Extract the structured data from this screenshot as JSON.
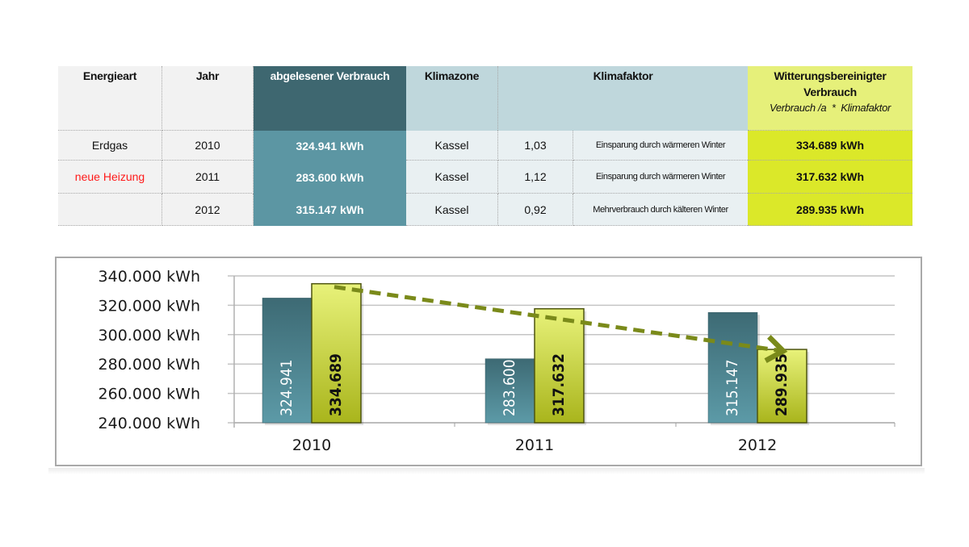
{
  "table": {
    "headers": {
      "energieart": "Energieart",
      "jahr": "Jahr",
      "verbrauch": "abgelesener Verbrauch",
      "klimazone": "Klimazone",
      "klimafaktor": "Klimafaktor",
      "witterung_line1": "Witterungsbereinigter",
      "witterung_line2": "Verbrauch",
      "witterung_formula": "Verbrauch /a  *  Klimafaktor"
    },
    "rows": [
      {
        "energieart": "Erdgas",
        "jahr": "2010",
        "verbrauch": "324.941 kWh",
        "klimazone": "Kassel",
        "faktor": "1,03",
        "beschreibung": "Einsparung durch wärmeren Winter",
        "bereinigt": "334.689 kWh"
      },
      {
        "energieart": "neue Heizung",
        "jahr": "2011",
        "verbrauch": "283.600 kWh",
        "klimazone": "Kassel",
        "faktor": "1,12",
        "beschreibung": "Einsparung durch wärmeren Winter",
        "bereinigt": "317.632 kWh"
      },
      {
        "energieart": "",
        "jahr": "2012",
        "verbrauch": "315.147 kWh",
        "klimazone": "Kassel",
        "faktor": "0,92",
        "beschreibung": "Mehrverbrauch durch kälteren Winter",
        "bereinigt": "289.935 kWh"
      }
    ]
  },
  "colors": {
    "teal_series": "#4f8591",
    "lime_series": "#d4e04a",
    "trend_arrow": "#7a8a1a",
    "highlight_red": "#ff1a1a"
  },
  "chart_data": {
    "type": "bar",
    "categories": [
      "2010",
      "2011",
      "2012"
    ],
    "series": [
      {
        "name": "abgelesener Verbrauch",
        "values": [
          324941,
          283600,
          315147
        ],
        "labels": [
          "324.941",
          "283.600",
          "315.147"
        ]
      },
      {
        "name": "Witterungsbereinigter Verbrauch",
        "values": [
          334689,
          317632,
          289935
        ],
        "labels": [
          "334.689",
          "317.632",
          "289.935"
        ]
      }
    ],
    "ylim": [
      240000,
      340000
    ],
    "yticks": [
      240000,
      260000,
      280000,
      300000,
      320000,
      340000
    ],
    "ytick_labels": [
      "240.000 kWh",
      "260.000 kWh",
      "280.000 kWh",
      "300.000 kWh",
      "320.000 kWh",
      "340.000 kWh"
    ],
    "grid": true,
    "annotation": "dashed trend arrow from 2010 adjusted value to 2012 adjusted value",
    "title": "",
    "xlabel": "",
    "ylabel": ""
  }
}
